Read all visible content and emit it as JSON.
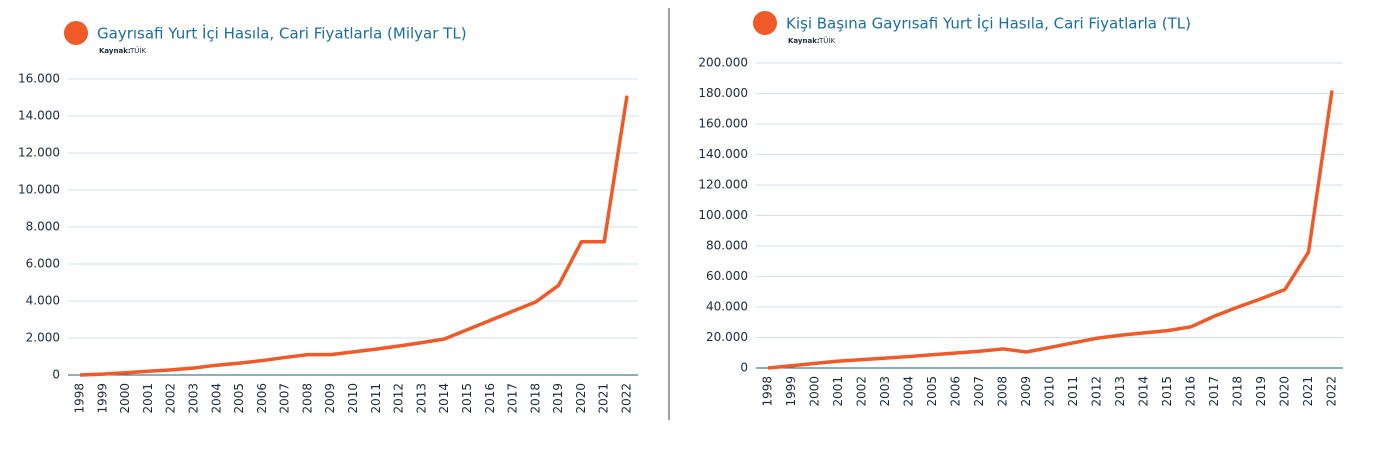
{
  "chart_data": [
    {
      "type": "line",
      "title": "Gayrısafi Yurt İçi Hasıla, Cari Fiyatlarla (Milyar TL)",
      "source_label": "Kaynak:",
      "source": "TÜİK",
      "categories": [
        "1998",
        "1999",
        "2000",
        "2001",
        "2002",
        "2003",
        "2004",
        "2005",
        "2006",
        "2007",
        "2008",
        "2009",
        "2010",
        "2011",
        "2012",
        "2013",
        "2014",
        "2015",
        "2016",
        "2017",
        "2018",
        "2019",
        "2020",
        "2021",
        "2022"
      ],
      "series": [
        {
          "color": "#f05a28",
          "values": [
            0,
            50,
            120,
            200,
            280,
            380,
            530,
            640,
            780,
            950,
            1100,
            1100,
            1250,
            1400,
            1570,
            1750,
            1950,
            2450,
            2950,
            3450,
            3950,
            4850,
            7200,
            7200,
            15100
          ]
        }
      ],
      "ylim": [
        0,
        16000
      ],
      "yticks": [
        0,
        {
          "value": 2000,
          "label": "2.000"
        },
        {
          "value": 4000,
          "label": "4.000"
        },
        {
          "value": 6000,
          "label": "6.000"
        },
        {
          "value": 8000,
          "label": "8.000"
        },
        {
          "value": 10000,
          "label": "10.000"
        },
        {
          "value": 12000,
          "label": "12.000"
        },
        {
          "value": 14000,
          "label": "14.000"
        },
        {
          "value": 16000,
          "label": "16.000"
        }
      ],
      "grid": true
    },
    {
      "type": "line",
      "title": "Kişi Başına Gayrısafi Yurt İçi Hasıla, Cari Fiyatlarla (TL)",
      "source_label": "Kaynak:",
      "source": "TÜİK",
      "categories": [
        "1998",
        "1999",
        "2000",
        "2001",
        "2002",
        "2003",
        "2004",
        "2005",
        "2006",
        "2007",
        "2008",
        "2009",
        "2010",
        "2011",
        "2012",
        "2013",
        "2014",
        "2015",
        "2016",
        "2017",
        "2018",
        "2019",
        "2020",
        "2021",
        "2022"
      ],
      "series": [
        {
          "color": "#f05a28",
          "values": [
            0,
            1500,
            3000,
            4500,
            5500,
            6500,
            7500,
            8700,
            9800,
            11000,
            12500,
            10500,
            13500,
            16500,
            19500,
            21500,
            23000,
            24500,
            27000,
            34000,
            40000,
            45500,
            51500,
            76000,
            182000
          ]
        }
      ],
      "ylim": [
        0,
        200000
      ],
      "yticks": [
        0,
        {
          "value": 20000,
          "label": "20.000"
        },
        {
          "value": 40000,
          "label": "40.000"
        },
        {
          "value": 60000,
          "label": "60.000"
        },
        {
          "value": 80000,
          "label": "80.000"
        },
        {
          "value": 100000,
          "label": "100.000"
        },
        {
          "value": 120000,
          "label": "120.000"
        },
        {
          "value": 140000,
          "label": "140.000"
        },
        {
          "value": 160000,
          "label": "160.000"
        },
        {
          "value": 180000,
          "label": "180.000"
        },
        {
          "value": 200000,
          "label": "200.000"
        }
      ],
      "grid": true
    }
  ]
}
